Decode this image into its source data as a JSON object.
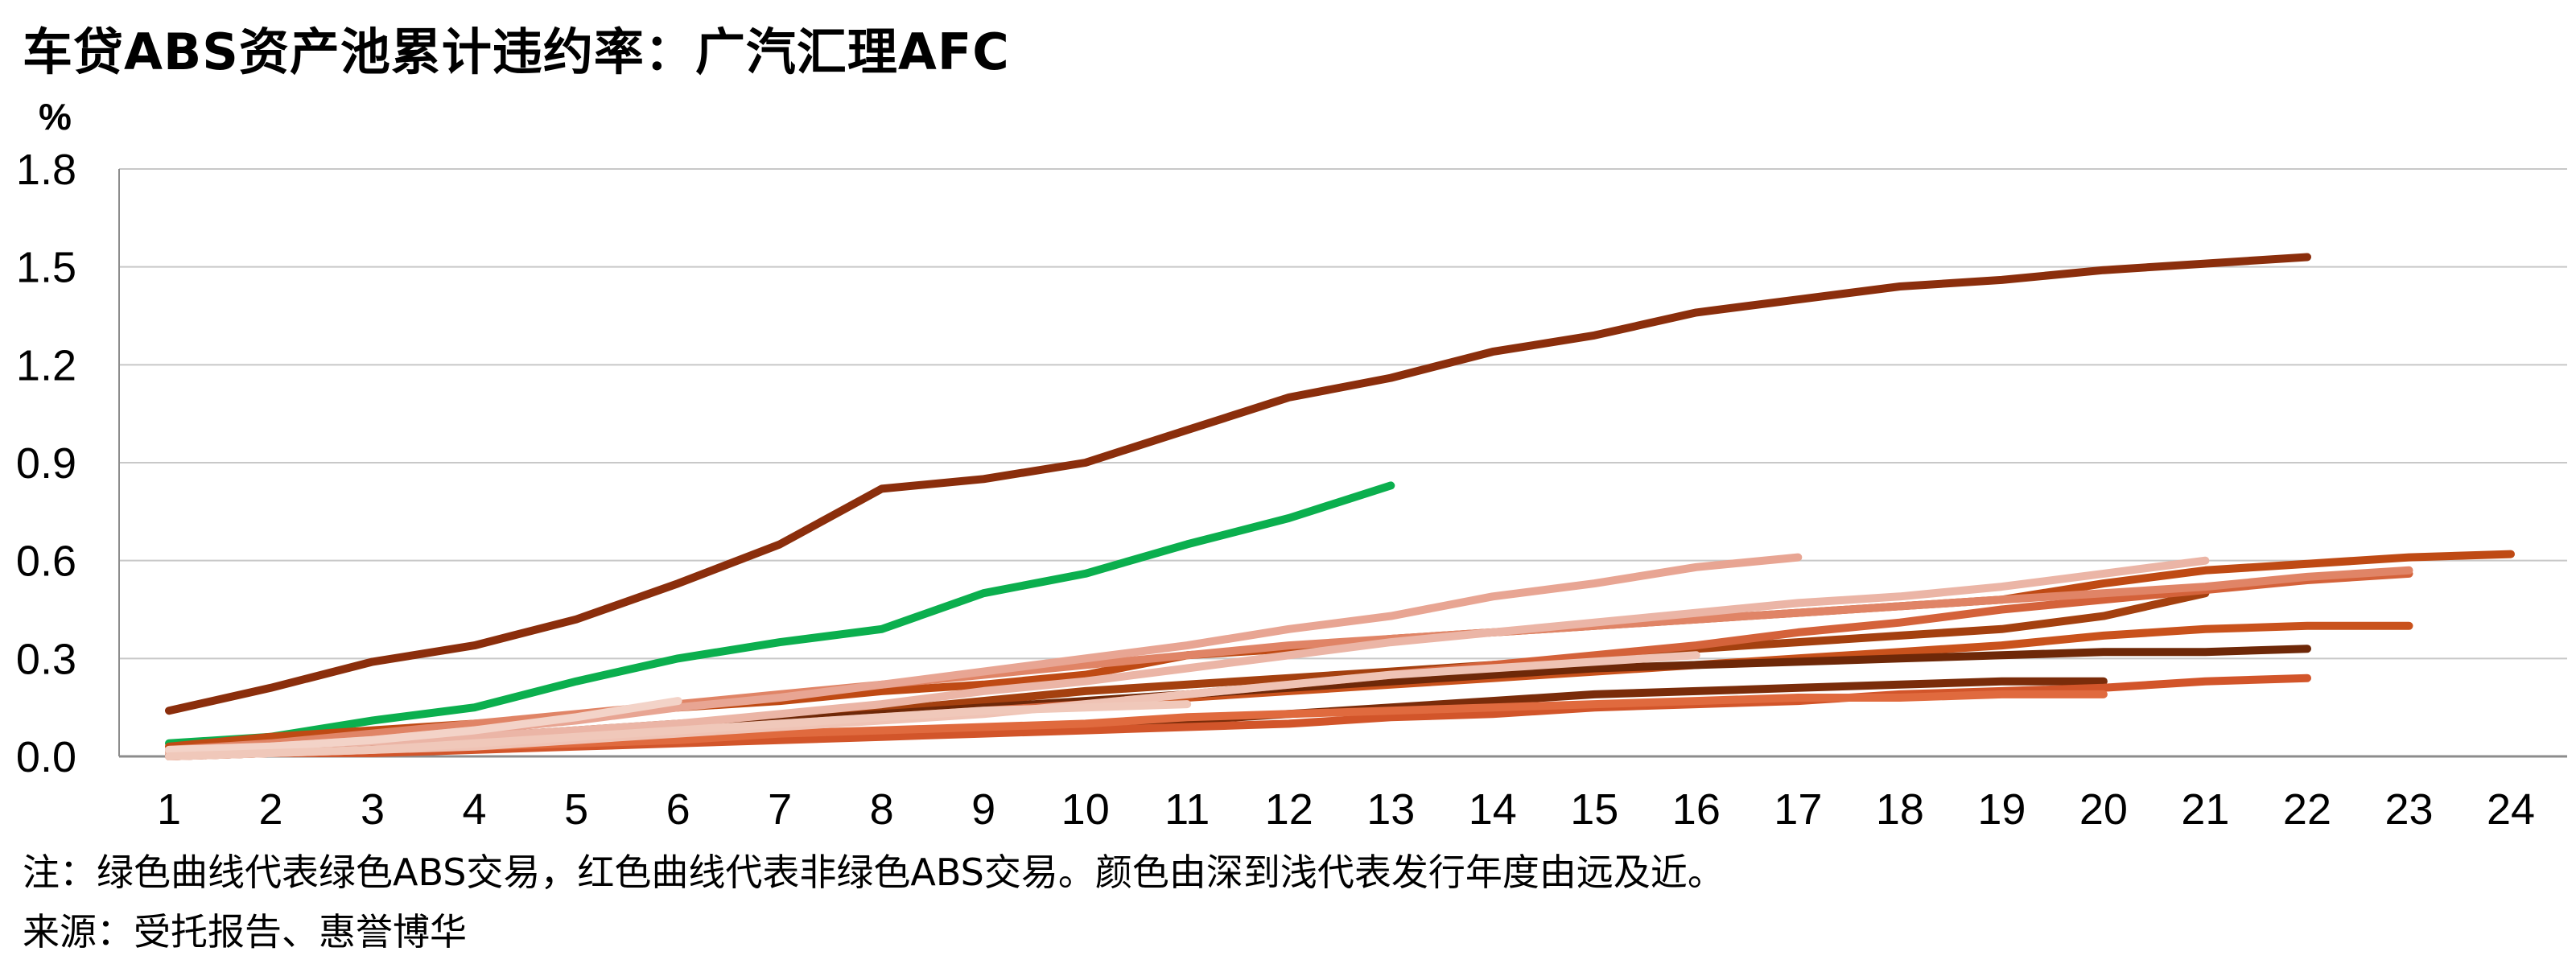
{
  "title": "车贷ABS资产池累计违约率：广汽汇理AFC",
  "unit_label": "%",
  "notes": {
    "note": "注：绿色曲线代表绿色ABS交易，红色曲线代表非绿色ABS交易。颜色由深到浅代表发行年度由远及近。",
    "source": "来源：受托报告、惠誉博华"
  },
  "chart_data": {
    "type": "line",
    "title": "车贷ABS资产池累计违约率：广汽汇理AFC",
    "ylabel": "%",
    "xlabel": "",
    "x_ticks": [
      "1",
      "2",
      "3",
      "4",
      "5",
      "6",
      "7",
      "8",
      "9",
      "10",
      "11",
      "12",
      "13",
      "14",
      "15",
      "16",
      "17",
      "18",
      "19",
      "20",
      "21",
      "22",
      "23",
      "24"
    ],
    "y_ticks": [
      "0.0",
      "0.3",
      "0.6",
      "0.9",
      "1.2",
      "1.5",
      "1.8"
    ],
    "xlim": [
      1,
      24
    ],
    "ylim": [
      0,
      1.8
    ],
    "grid": "horizontal",
    "series": [
      {
        "color": "#8B2E0C",
        "values": [
          0.14,
          0.21,
          0.29,
          0.34,
          0.42,
          0.53,
          0.65,
          0.82,
          0.85,
          0.9,
          1.0,
          1.1,
          1.16,
          1.24,
          1.29,
          1.36,
          1.4,
          1.44,
          1.46,
          1.49,
          1.51,
          1.53
        ]
      },
      {
        "color": "#0BAF4E",
        "values": [
          0.04,
          0.06,
          0.11,
          0.15,
          0.23,
          0.3,
          0.35,
          0.39,
          0.5,
          0.56,
          0.65,
          0.73,
          0.83
        ]
      },
      {
        "color": "#BF4A14",
        "values": [
          0.03,
          0.06,
          0.08,
          0.1,
          0.12,
          0.15,
          0.17,
          0.2,
          0.22,
          0.25,
          0.31,
          0.33,
          0.36,
          0.38,
          0.4,
          0.42,
          0.44,
          0.46,
          0.48,
          0.53,
          0.57,
          0.59,
          0.61,
          0.62
        ]
      },
      {
        "color": "#A4400F",
        "values": [
          0.01,
          0.02,
          0.04,
          0.06,
          0.08,
          0.1,
          0.12,
          0.14,
          0.17,
          0.2,
          0.22,
          0.24,
          0.26,
          0.28,
          0.3,
          0.33,
          0.35,
          0.37,
          0.39,
          0.43,
          0.5
        ]
      },
      {
        "color": "#C9521C",
        "values": [
          0.01,
          0.02,
          0.03,
          0.04,
          0.06,
          0.08,
          0.1,
          0.12,
          0.14,
          0.16,
          0.18,
          0.2,
          0.22,
          0.24,
          0.26,
          0.28,
          0.3,
          0.32,
          0.34,
          0.37,
          0.39,
          0.4,
          0.4
        ]
      },
      {
        "color": "#6E2808",
        "values": [
          0.01,
          0.02,
          0.03,
          0.05,
          0.07,
          0.09,
          0.11,
          0.13,
          0.15,
          0.17,
          0.19,
          0.21,
          0.23,
          0.25,
          0.27,
          0.28,
          0.29,
          0.3,
          0.31,
          0.32,
          0.32,
          0.33
        ]
      },
      {
        "color": "#D4623A",
        "values": [
          0.01,
          0.02,
          0.03,
          0.04,
          0.06,
          0.08,
          0.1,
          0.12,
          0.14,
          0.16,
          0.19,
          0.22,
          0.25,
          0.28,
          0.31,
          0.34,
          0.38,
          0.41,
          0.45,
          0.48,
          0.51,
          0.54,
          0.56
        ]
      },
      {
        "color": "#E08466",
        "values": [
          0.02,
          0.04,
          0.07,
          0.1,
          0.13,
          0.16,
          0.19,
          0.22,
          0.25,
          0.28,
          0.31,
          0.34,
          0.36,
          0.38,
          0.4,
          0.42,
          0.44,
          0.46,
          0.48,
          0.5,
          0.52,
          0.55,
          0.57
        ]
      },
      {
        "color": "#E8A593",
        "values": [
          0.01,
          0.03,
          0.05,
          0.08,
          0.11,
          0.15,
          0.18,
          0.22,
          0.26,
          0.3,
          0.34,
          0.39,
          0.43,
          0.49,
          0.53,
          0.58,
          0.61
        ]
      },
      {
        "color": "#EBB5A6",
        "values": [
          0.01,
          0.02,
          0.04,
          0.06,
          0.08,
          0.1,
          0.13,
          0.16,
          0.2,
          0.23,
          0.27,
          0.31,
          0.35,
          0.38,
          0.41,
          0.44,
          0.47,
          0.49,
          0.52,
          0.56,
          0.6
        ]
      },
      {
        "color": "#7A2C0A",
        "values": [
          0.0,
          0.01,
          0.02,
          0.03,
          0.04,
          0.05,
          0.06,
          0.07,
          0.08,
          0.09,
          0.11,
          0.13,
          0.15,
          0.17,
          0.19,
          0.2,
          0.21,
          0.22,
          0.23,
          0.23
        ]
      },
      {
        "color": "#D2552A",
        "values": [
          0.0,
          0.01,
          0.01,
          0.02,
          0.03,
          0.04,
          0.05,
          0.06,
          0.07,
          0.08,
          0.09,
          0.1,
          0.12,
          0.13,
          0.15,
          0.16,
          0.17,
          0.19,
          0.2,
          0.21,
          0.23,
          0.24
        ]
      },
      {
        "color": "#E06A3E",
        "values": [
          0.0,
          0.01,
          0.02,
          0.03,
          0.04,
          0.05,
          0.07,
          0.08,
          0.09,
          0.1,
          0.12,
          0.13,
          0.14,
          0.15,
          0.16,
          0.17,
          0.18,
          0.18,
          0.19,
          0.19
        ]
      },
      {
        "color": "#EFC3B5",
        "values": [
          0.0,
          0.01,
          0.02,
          0.03,
          0.05,
          0.07,
          0.09,
          0.11,
          0.13,
          0.16,
          0.19,
          0.22,
          0.25,
          0.27,
          0.29,
          0.31
        ]
      },
      {
        "color": "#F3D3C8",
        "values": [
          0.02,
          0.03,
          0.05,
          0.08,
          0.12,
          0.17
        ]
      },
      {
        "color": "#F0C8BA",
        "values": [
          0.0,
          0.01,
          0.02,
          0.04,
          0.06,
          0.08,
          0.1,
          0.12,
          0.14,
          0.15,
          0.16
        ]
      }
    ]
  }
}
